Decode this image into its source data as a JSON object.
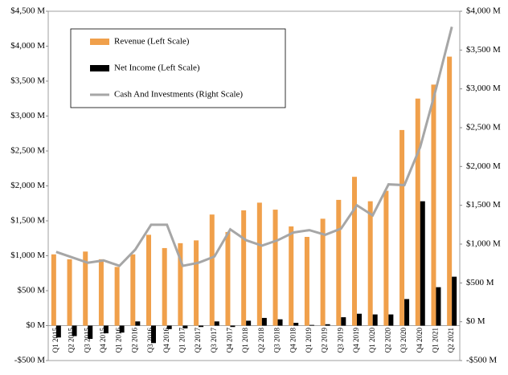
{
  "chart_data": {
    "type": "bar-line",
    "categories": [
      "Q1 2015",
      "Q2 2015",
      "Q3 2015",
      "Q4 2015",
      "Q1 2016",
      "Q2 2016",
      "Q3 2016",
      "Q4 2016",
      "Q1 2017",
      "Q2 2017",
      "Q3 2017",
      "Q4 2017",
      "Q1 2018",
      "Q2 2018",
      "Q3 2018",
      "Q4 2018",
      "Q1 2019",
      "Q2 2019",
      "Q3 2019",
      "Q4 2019",
      "Q1 2020",
      "Q2 2020",
      "Q3 2020",
      "Q4 2020",
      "Q1 2021",
      "Q2 2021"
    ],
    "series": [
      {
        "name": "Revenue (Left Scale)",
        "type": "bar",
        "color": "#f0a04b",
        "values": [
          1020,
          950,
          1060,
          950,
          840,
          1020,
          1300,
          1110,
          1180,
          1220,
          1590,
          1340,
          1650,
          1760,
          1660,
          1420,
          1270,
          1530,
          1800,
          2130,
          1780,
          1930,
          2800,
          3250,
          3450,
          3850
        ]
      },
      {
        "name": "Net Income (Left Scale)",
        "type": "bar",
        "color": "#000000",
        "values": [
          -170,
          -150,
          -190,
          -110,
          -100,
          60,
          -250,
          -50,
          -40,
          -20,
          60,
          -20,
          70,
          110,
          90,
          40,
          10,
          20,
          120,
          170,
          160,
          160,
          380,
          1780,
          550,
          700
        ]
      },
      {
        "name": "Cash And Investments (Right Scale)",
        "type": "line",
        "axis": "y2",
        "color": "#a6a6a6",
        "values": [
          900,
          830,
          760,
          790,
          720,
          930,
          1250,
          1250,
          720,
          760,
          840,
          1190,
          1050,
          980,
          1050,
          1150,
          1180,
          1120,
          1200,
          1500,
          1370,
          1770,
          1760,
          2250,
          3000,
          3800
        ]
      }
    ],
    "ylim": [
      -500,
      4500
    ],
    "yticks": [
      {
        "value": -500,
        "label": "-$500 M"
      },
      {
        "value": 0,
        "label": "$0 M"
      },
      {
        "value": 500,
        "label": "$500 M"
      },
      {
        "value": 1000,
        "label": "$1,000 M"
      },
      {
        "value": 1500,
        "label": "$1,500 M"
      },
      {
        "value": 2000,
        "label": "$2,000 M"
      },
      {
        "value": 2500,
        "label": "$2,500 M"
      },
      {
        "value": 3000,
        "label": "$3,000 M"
      },
      {
        "value": 3500,
        "label": "$3,500 M"
      },
      {
        "value": 4000,
        "label": "$4,000 M"
      },
      {
        "value": 4500,
        "label": "$4,500 M"
      }
    ],
    "y2lim": [
      -500,
      4000
    ],
    "y2ticks": [
      {
        "value": -500,
        "label": "-$500 M"
      },
      {
        "value": 0,
        "label": "$0 M"
      },
      {
        "value": 500,
        "label": "$500 M"
      },
      {
        "value": 1000,
        "label": "$1,000 M"
      },
      {
        "value": 1500,
        "label": "$1,500 M"
      },
      {
        "value": 2000,
        "label": "$2,000 M"
      },
      {
        "value": 2500,
        "label": "$2,500 M"
      },
      {
        "value": 3000,
        "label": "$3,000 M"
      },
      {
        "value": 3500,
        "label": "$3,500 M"
      },
      {
        "value": 4000,
        "label": "$4,000 M"
      }
    ],
    "legend": "top-left"
  }
}
